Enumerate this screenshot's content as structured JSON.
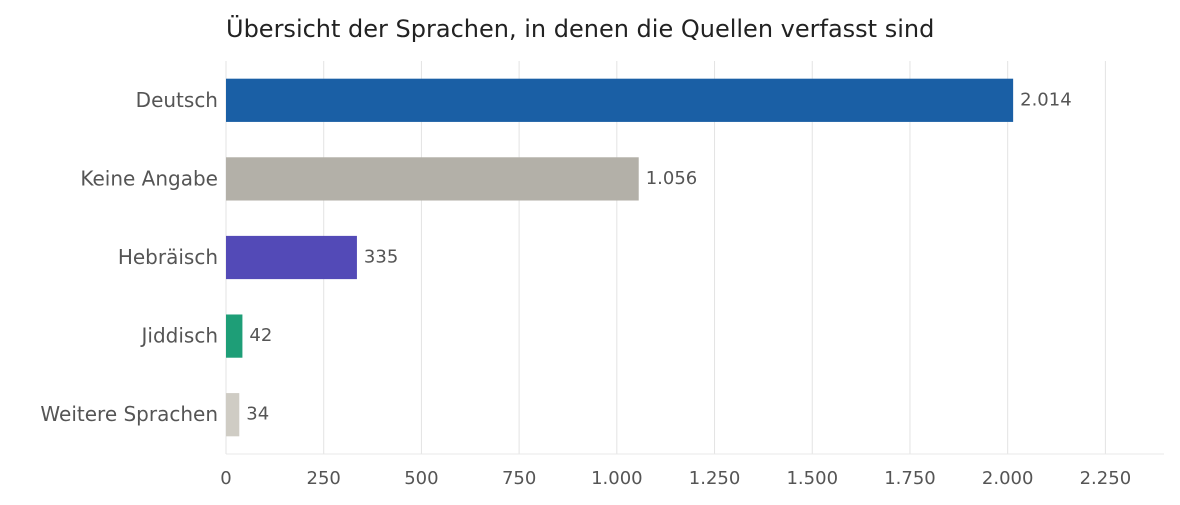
{
  "chart_data": {
    "type": "hbar",
    "title": "Übersicht der Sprachen, in denen die Quellen verfasst sind",
    "categories": [
      "Deutsch",
      "Keine Angabe",
      "Hebräisch",
      "Jiddisch",
      "Weitere Sprachen"
    ],
    "values": [
      2014,
      1056,
      335,
      42,
      34
    ],
    "value_labels": [
      "2.014",
      "1.056",
      "335",
      "42",
      "34"
    ],
    "colors": [
      "#1a5fa5",
      "#b3b0a8",
      "#534ab7",
      "#1e9e77",
      "#cfccc4"
    ],
    "xlim": [
      0,
      2400
    ],
    "xticks": [
      0,
      250,
      500,
      750,
      {
        "value": 1000,
        "label": "1.000"
      },
      {
        "value": 1250,
        "label": "1.250"
      },
      {
        "value": 1500,
        "label": "1.500"
      },
      {
        "value": 1750,
        "label": "1.750"
      },
      {
        "value": 2000,
        "label": "2.000"
      },
      {
        "value": 2250,
        "label": "2.250"
      }
    ],
    "grid": true
  }
}
